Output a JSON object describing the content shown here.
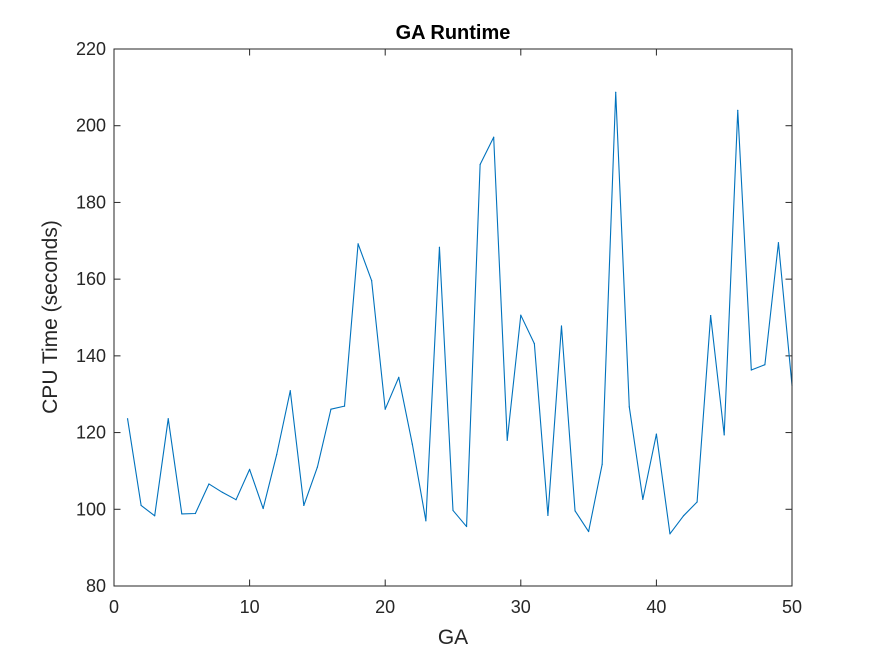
{
  "chart_data": {
    "type": "line",
    "title": "GA Runtime",
    "xlabel": "GA",
    "ylabel": "CPU Time (seconds)",
    "xlim": [
      0,
      50
    ],
    "ylim": [
      80,
      220
    ],
    "xticks": [
      0,
      10,
      20,
      30,
      40,
      50
    ],
    "yticks": [
      80,
      100,
      120,
      140,
      160,
      180,
      200,
      220
    ],
    "grid": false,
    "legend": "none",
    "series": [
      {
        "color": "#0072BD",
        "x": [
          1,
          2,
          3,
          4,
          5,
          6,
          7,
          8,
          9,
          10,
          11,
          12,
          13,
          14,
          15,
          16,
          17,
          18,
          19,
          20,
          21,
          22,
          23,
          24,
          25,
          26,
          27,
          28,
          29,
          30,
          31,
          32,
          33,
          34,
          35,
          36,
          37,
          38,
          39,
          40,
          41,
          42,
          43,
          44,
          45,
          46,
          47,
          48,
          49,
          50
        ],
        "y": [
          123.6,
          101,
          98.3,
          123.6,
          98.8,
          98.9,
          106.6,
          104.4,
          102.5,
          110.4,
          100.2,
          114.3,
          130.9,
          101,
          111,
          126.1,
          126.9,
          169.2,
          159.6,
          126.1,
          134.4,
          117,
          97,
          168.3,
          99.7,
          95.5,
          189.9,
          197,
          118,
          150.6,
          143.2,
          98.4,
          147.8,
          99.6,
          94.2,
          111.7,
          208.7,
          126.7,
          102.6,
          119.6,
          93.6,
          98.3,
          101.9,
          150.5,
          119.4,
          204,
          136.3,
          137.7,
          169.5,
          132.3
        ]
      }
    ]
  }
}
